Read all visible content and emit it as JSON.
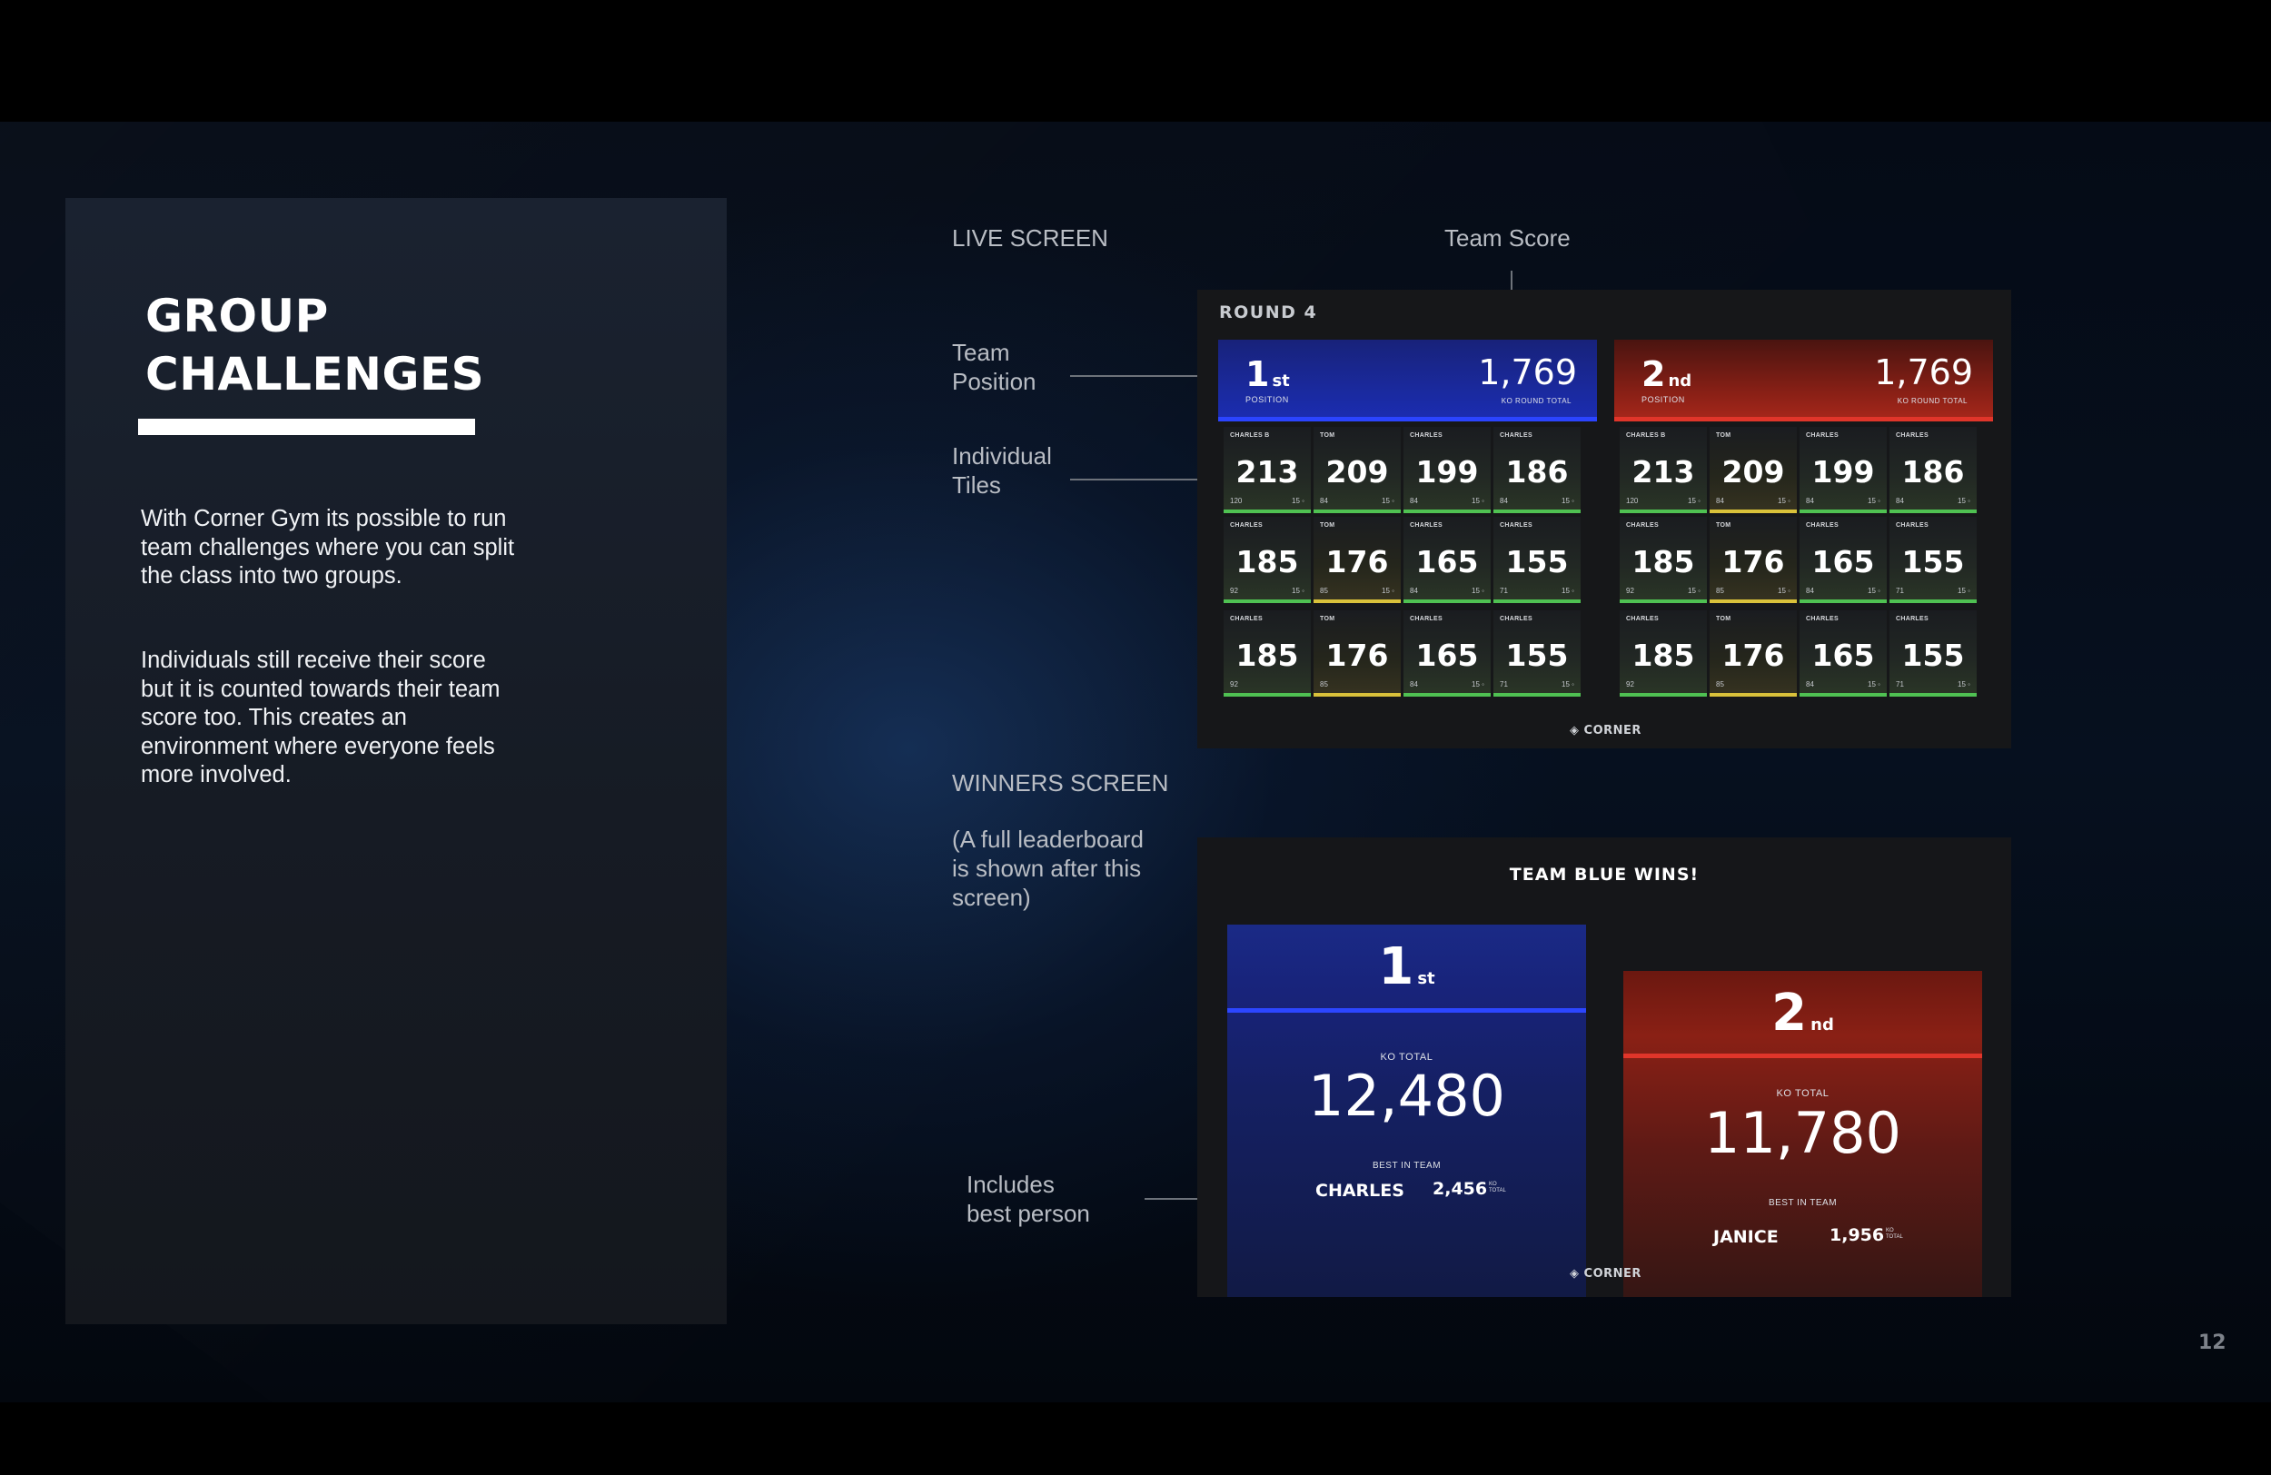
{
  "left_panel": {
    "title_line1": "GROUP",
    "title_line2": "CHALLENGES",
    "paragraph1": "With Corner Gym its possible to run team challenges where you can split the class into two groups.",
    "paragraph2": "Individuals still receive their score but it is counted towards their team score too. This creates an environment where everyone feels more involved."
  },
  "annotations": {
    "live_screen": "LIVE SCREEN",
    "team_score": "Team Score",
    "team_position_1": "Team",
    "team_position_2": "Position",
    "individual_tiles_1": "Individual",
    "individual_tiles_2": "Tiles",
    "winners_screen": "WINNERS SCREEN",
    "leaderboard_note_1": "(A full leaderboard",
    "leaderboard_note_2": "is shown after this",
    "leaderboard_note_3": "screen)",
    "best_person_1": "Includes",
    "best_person_2": "best person"
  },
  "live_screen": {
    "round": "ROUND 4",
    "brand": "◈ CORNER",
    "teams": [
      {
        "color": "#1b2cb0",
        "position": "1",
        "position_suffix": "st",
        "position_label": "POSITION",
        "score": "1,769",
        "score_label": "KO ROUND TOTAL",
        "tiles": [
          {
            "name": "CHARLES B",
            "value": "213",
            "sub": "120",
            "rt": "15 ◦",
            "bar": "green"
          },
          {
            "name": "TOM",
            "value": "209",
            "sub": "84",
            "rt": "15 ◦",
            "bar": "green"
          },
          {
            "name": "CHARLES",
            "value": "199",
            "sub": "84",
            "rt": "15 ◦",
            "bar": "green"
          },
          {
            "name": "CHARLES",
            "value": "186",
            "sub": "84",
            "rt": "15 ◦",
            "bar": "green"
          },
          {
            "name": "CHARLES",
            "value": "185",
            "sub": "92",
            "rt": "15 ◦",
            "bar": "green"
          },
          {
            "name": "TOM",
            "value": "176",
            "sub": "85",
            "rt": "15 ◦",
            "bar": "yellow"
          },
          {
            "name": "CHARLES",
            "value": "165",
            "sub": "84",
            "rt": "15 ◦",
            "bar": "green"
          },
          {
            "name": "CHARLES",
            "value": "155",
            "sub": "71",
            "rt": "15 ◦",
            "bar": "green"
          },
          {
            "name": "CHARLES",
            "value": "185",
            "sub": "92",
            "rt": "",
            "bar": "green"
          },
          {
            "name": "TOM",
            "value": "176",
            "sub": "85",
            "rt": "",
            "bar": "yellow"
          },
          {
            "name": "CHARLES",
            "value": "165",
            "sub": "84",
            "rt": "15 ◦",
            "bar": "green"
          },
          {
            "name": "CHARLES",
            "value": "155",
            "sub": "71",
            "rt": "15 ◦",
            "bar": "green"
          }
        ]
      },
      {
        "color": "#a3261a",
        "position": "2",
        "position_suffix": "nd",
        "position_label": "POSITION",
        "score": "1,769",
        "score_label": "KO ROUND TOTAL",
        "tiles": [
          {
            "name": "CHARLES B",
            "value": "213",
            "sub": "120",
            "rt": "15 ◦",
            "bar": "green"
          },
          {
            "name": "TOM",
            "value": "209",
            "sub": "84",
            "rt": "15 ◦",
            "bar": "yellow"
          },
          {
            "name": "CHARLES",
            "value": "199",
            "sub": "84",
            "rt": "15 ◦",
            "bar": "green"
          },
          {
            "name": "CHARLES",
            "value": "186",
            "sub": "84",
            "rt": "15 ◦",
            "bar": "green"
          },
          {
            "name": "CHARLES",
            "value": "185",
            "sub": "92",
            "rt": "15 ◦",
            "bar": "green"
          },
          {
            "name": "TOM",
            "value": "176",
            "sub": "85",
            "rt": "15 ◦",
            "bar": "yellow"
          },
          {
            "name": "CHARLES",
            "value": "165",
            "sub": "84",
            "rt": "15 ◦",
            "bar": "green"
          },
          {
            "name": "CHARLES",
            "value": "155",
            "sub": "71",
            "rt": "15 ◦",
            "bar": "green"
          },
          {
            "name": "CHARLES",
            "value": "185",
            "sub": "92",
            "rt": "",
            "bar": "green"
          },
          {
            "name": "TOM",
            "value": "176",
            "sub": "85",
            "rt": "",
            "bar": "yellow"
          },
          {
            "name": "CHARLES",
            "value": "165",
            "sub": "84",
            "rt": "15 ◦",
            "bar": "green"
          },
          {
            "name": "CHARLES",
            "value": "155",
            "sub": "71",
            "rt": "15 ◦",
            "bar": "green"
          }
        ]
      }
    ]
  },
  "winners_screen": {
    "title": "TEAM BLUE WINS!",
    "brand": "◈ CORNER",
    "blue": {
      "position": "1",
      "position_suffix": "st",
      "ko_label": "KO TOTAL",
      "ko_total": "12,480",
      "best_label": "BEST IN TEAM",
      "best_name": "CHARLES",
      "best_score": "2,456",
      "best_unit_1": "KO",
      "best_unit_2": "TOTAL"
    },
    "red": {
      "position": "2",
      "position_suffix": "nd",
      "ko_label": "KO TOTAL",
      "ko_total": "11,780",
      "best_label": "BEST IN TEAM",
      "best_name": "JANICE",
      "best_score": "1,956",
      "best_unit_1": "KO",
      "best_unit_2": "TOTAL"
    }
  },
  "page_number": "12",
  "colors": {
    "blue_accent": "#2b44ff",
    "red_accent": "#e0352a",
    "tile_green": "#4fc152",
    "tile_yellow": "#d9c13a"
  }
}
